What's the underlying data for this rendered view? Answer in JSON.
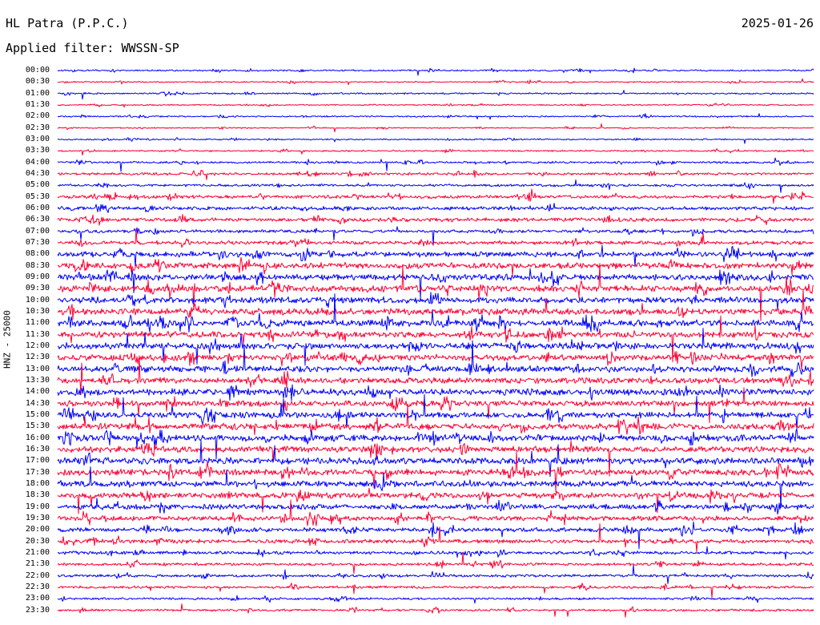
{
  "header": {
    "station_title": "HL Patra (P.P.C.)",
    "date": "2025-01-26",
    "filter_caption": "Applied filter: WWSSN-SP"
  },
  "channel_label": "HNZ - 25000",
  "colors": {
    "trace_even": "#0000ff",
    "trace_odd": "#ff0033",
    "background": "#ffffff",
    "text": "#000000"
  },
  "time_labels": [
    "00:00",
    "00:30",
    "01:00",
    "01:30",
    "02:00",
    "02:30",
    "03:00",
    "03:30",
    "04:00",
    "04:30",
    "05:00",
    "05:30",
    "06:00",
    "06:30",
    "07:00",
    "07:30",
    "08:00",
    "08:30",
    "09:00",
    "09:30",
    "10:00",
    "10:30",
    "11:00",
    "11:30",
    "12:00",
    "12:30",
    "13:00",
    "13:30",
    "14:00",
    "14:30",
    "15:00",
    "15:30",
    "16:00",
    "16:30",
    "17:00",
    "17:30",
    "18:00",
    "18:30",
    "19:00",
    "19:30",
    "20:00",
    "20:30",
    "21:00",
    "21:30",
    "22:00",
    "22:30",
    "23:00",
    "23:30"
  ],
  "trace_activity": [
    0.35,
    0.3,
    0.35,
    0.28,
    0.32,
    0.26,
    0.3,
    0.35,
    0.45,
    0.55,
    0.55,
    0.7,
    0.8,
    0.85,
    0.7,
    0.85,
    1.2,
    1.35,
    1.35,
    1.45,
    1.4,
    1.5,
    1.45,
    1.4,
    1.4,
    1.35,
    1.4,
    1.3,
    1.4,
    1.3,
    1.35,
    1.4,
    1.45,
    1.35,
    1.45,
    1.4,
    1.4,
    1.25,
    1.15,
    1.05,
    0.95,
    0.85,
    0.7,
    0.65,
    0.6,
    0.55,
    0.5,
    0.5
  ]
}
